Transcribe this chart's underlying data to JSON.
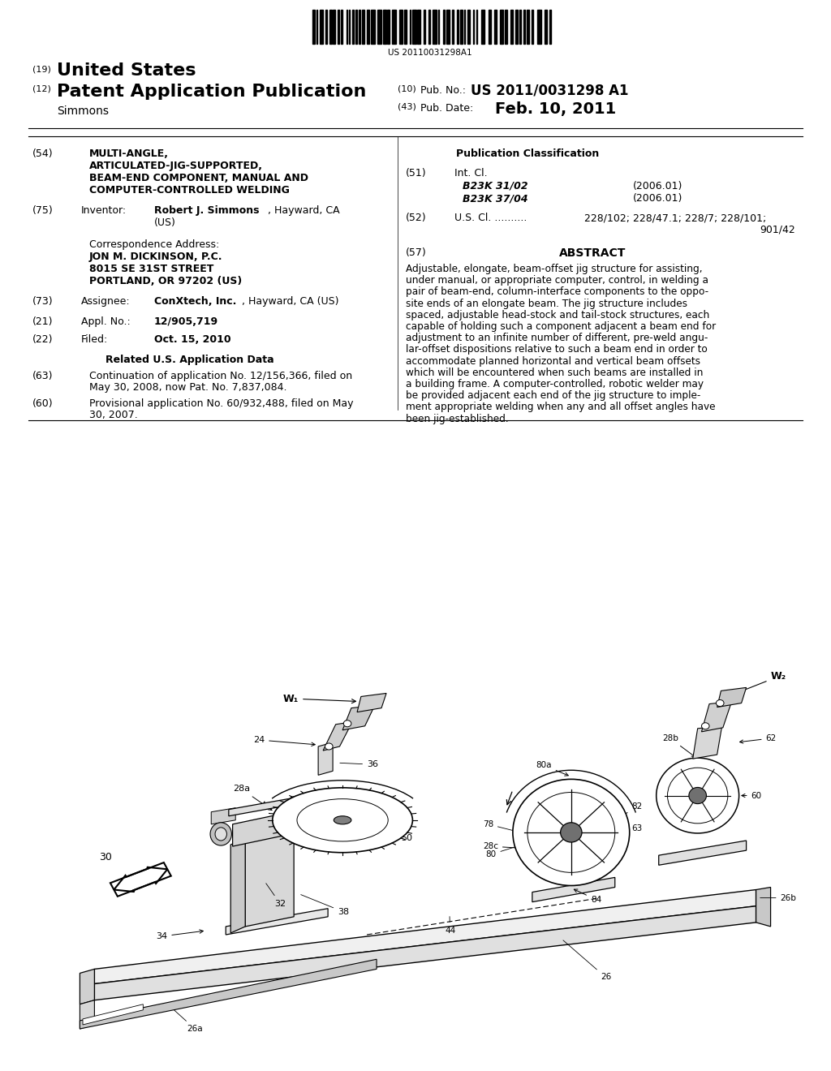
{
  "background_color": "#ffffff",
  "page_width": 10.24,
  "page_height": 13.2,
  "barcode_text": "US 20110031298A1",
  "pub_no_value": "US 2011/0031298 A1",
  "pub_date_value": "Feb. 10, 2011",
  "title_lines": [
    "MULTI-ANGLE,",
    "ARTICULATED-JIG-SUPPORTED,",
    "BEAM-END COMPONENT, MANUAL AND",
    "COMPUTER-CONTROLLED WELDING"
  ],
  "inventor_name": "Robert J. Simmons",
  "inventor_rest": ", Hayward, CA",
  "corr_line1": "JON M. DICKINSON, P.C.",
  "corr_line2": "8015 SE 31ST STREET",
  "corr_line3": "PORTLAND, OR 97202 (US)",
  "assignee_bold": "ConXtech, Inc.",
  "assignee_rest": ", Hayward, CA (US)",
  "appl_value": "12/905,719",
  "filed_value": "Oct. 15, 2010",
  "int_cl_line1": "B23K 31/02",
  "int_cl_line2": "B23K 37/04",
  "int_cl_year1": "(2006.01)",
  "int_cl_year2": "(2006.01)",
  "abstract_text": "Adjustable, elongate, beam-offset jig structure for assisting,\nunder manual, or appropriate computer, control, in welding a\npair of beam-end, column-interface components to the oppo-\nsite ends of an elongate beam. The jig structure includes\nspaced, adjustable head-stock and tail-stock structures, each\ncapable of holding such a component adjacent a beam end for\nadjustment to an infinite number of different, pre-weld angu-\nlar-offset dispositions relative to such a beam end in order to\naccommodate planned horizontal and vertical beam offsets\nwhich will be encountered when such beams are installed in\na building frame. A computer-controlled, robotic welder may\nbe provided adjacent each end of the jig structure to imple-\nment appropriate welding when any and all offset angles have\nbeen jig-established."
}
